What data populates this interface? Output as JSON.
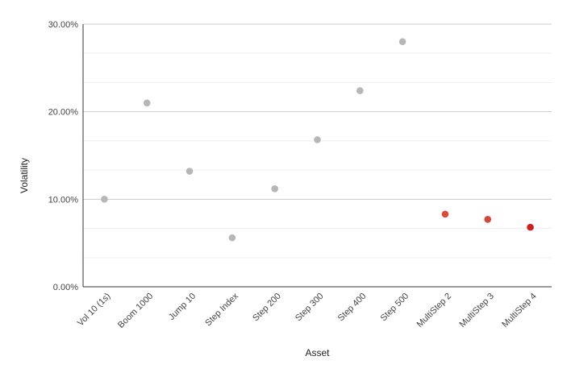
{
  "chart_data": {
    "type": "scatter",
    "title": "",
    "xlabel": "Asset",
    "ylabel": "Volatility",
    "categories": [
      "Vol 10 (1s)",
      "Boom 1000",
      "Jump 10",
      "Step Index",
      "Step 200",
      "Step 300",
      "Step 400",
      "Step 500",
      "MultiStep 2",
      "MultiStep 3",
      "MultiStep 4"
    ],
    "values": [
      10.0,
      21.0,
      13.2,
      5.6,
      11.2,
      16.8,
      22.4,
      28.0,
      8.3,
      7.7,
      6.8
    ],
    "point_colors": [
      "#b7b7b7",
      "#b7b7b7",
      "#b7b7b7",
      "#b7b7b7",
      "#b7b7b7",
      "#b7b7b7",
      "#b7b7b7",
      "#b7b7b7",
      "#dd4a3b",
      "#d9443a",
      "#cc1f1f"
    ],
    "ylim": [
      0,
      30
    ],
    "y_ticks": [
      "0.00%",
      "10.00%",
      "20.00%",
      "30.00%"
    ],
    "y_tick_values": [
      0,
      10,
      20,
      30
    ],
    "minor_grid_values": [
      3.33,
      6.67,
      13.33,
      16.67,
      23.33,
      26.67
    ],
    "grid": true,
    "legend": "none"
  }
}
